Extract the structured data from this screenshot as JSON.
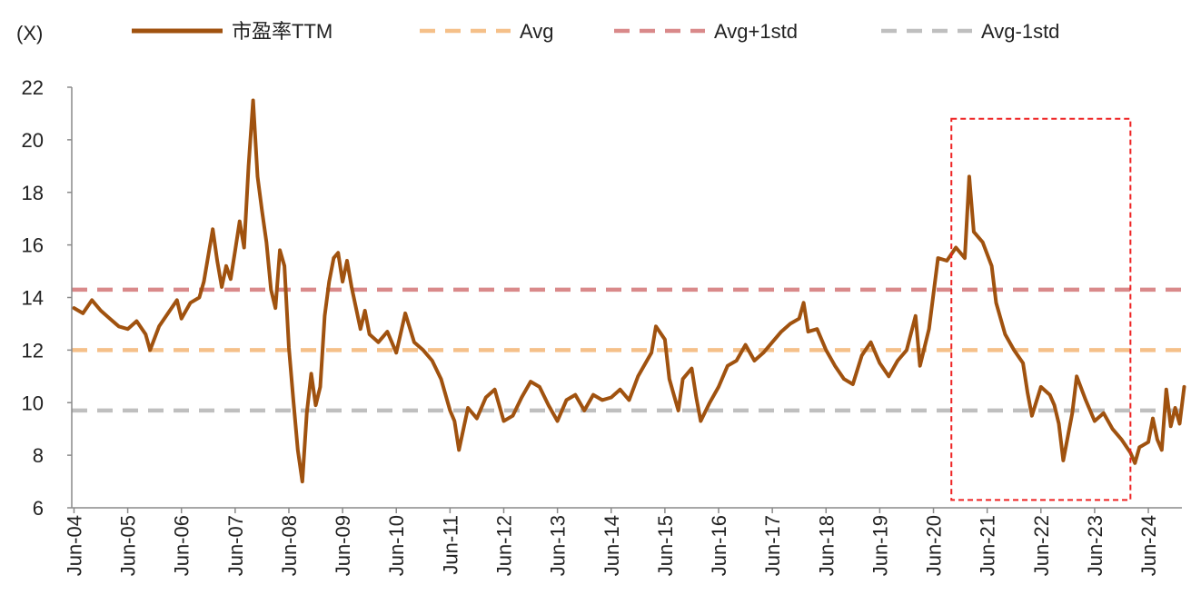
{
  "chart_data": {
    "type": "line",
    "y_unit_label": "(X)",
    "ylim": [
      6,
      22
    ],
    "y_ticks": [
      6,
      8,
      10,
      12,
      14,
      16,
      18,
      20,
      22
    ],
    "x_tick_labels": [
      "Jun-04",
      "Jun-05",
      "Jun-06",
      "Jun-07",
      "Jun-08",
      "Jun-09",
      "Jun-10",
      "Jun-11",
      "Jun-12",
      "Jun-13",
      "Jun-14",
      "Jun-15",
      "Jun-16",
      "Jun-17",
      "Jun-18",
      "Jun-19",
      "Jun-20",
      "Jun-21",
      "Jun-22",
      "Jun-23",
      "Jun-24"
    ],
    "x_range": [
      "2004-06",
      "2024-09"
    ],
    "grid": false,
    "legend_position": "top",
    "series": [
      {
        "name": "市盈率TTM",
        "color": "#A0520F",
        "style": "solid",
        "points": [
          [
            "2004-06",
            13.6
          ],
          [
            "2004-08",
            13.4
          ],
          [
            "2004-10",
            13.9
          ],
          [
            "2004-12",
            13.5
          ],
          [
            "2005-02",
            13.2
          ],
          [
            "2005-04",
            12.9
          ],
          [
            "2005-06",
            12.8
          ],
          [
            "2005-08",
            13.1
          ],
          [
            "2005-10",
            12.6
          ],
          [
            "2005-11",
            12.0
          ],
          [
            "2006-01",
            12.9
          ],
          [
            "2006-03",
            13.4
          ],
          [
            "2006-05",
            13.9
          ],
          [
            "2006-06",
            13.2
          ],
          [
            "2006-08",
            13.8
          ],
          [
            "2006-10",
            14.0
          ],
          [
            "2006-11",
            14.6
          ],
          [
            "2007-01",
            16.6
          ],
          [
            "2007-02",
            15.4
          ],
          [
            "2007-03",
            14.4
          ],
          [
            "2007-04",
            15.2
          ],
          [
            "2007-05",
            14.7
          ],
          [
            "2007-06",
            15.8
          ],
          [
            "2007-07",
            16.9
          ],
          [
            "2007-08",
            15.9
          ],
          [
            "2007-09",
            19.0
          ],
          [
            "2007-10",
            21.5
          ],
          [
            "2007-11",
            18.6
          ],
          [
            "2007-12",
            17.3
          ],
          [
            "2008-01",
            16.1
          ],
          [
            "2008-02",
            14.3
          ],
          [
            "2008-03",
            13.6
          ],
          [
            "2008-04",
            15.8
          ],
          [
            "2008-05",
            15.2
          ],
          [
            "2008-06",
            12.1
          ],
          [
            "2008-07",
            10.1
          ],
          [
            "2008-08",
            8.2
          ],
          [
            "2008-09",
            7.0
          ],
          [
            "2008-10",
            9.6
          ],
          [
            "2008-11",
            11.1
          ],
          [
            "2008-12",
            9.9
          ],
          [
            "2009-01",
            10.6
          ],
          [
            "2009-02",
            13.3
          ],
          [
            "2009-03",
            14.6
          ],
          [
            "2009-04",
            15.5
          ],
          [
            "2009-05",
            15.7
          ],
          [
            "2009-06",
            14.6
          ],
          [
            "2009-07",
            15.4
          ],
          [
            "2009-08",
            14.4
          ],
          [
            "2009-09",
            13.6
          ],
          [
            "2009-10",
            12.8
          ],
          [
            "2009-11",
            13.5
          ],
          [
            "2009-12",
            12.6
          ],
          [
            "2010-02",
            12.3
          ],
          [
            "2010-04",
            12.7
          ],
          [
            "2010-06",
            11.9
          ],
          [
            "2010-08",
            13.4
          ],
          [
            "2010-10",
            12.3
          ],
          [
            "2010-12",
            12.0
          ],
          [
            "2011-02",
            11.6
          ],
          [
            "2011-04",
            10.9
          ],
          [
            "2011-06",
            9.7
          ],
          [
            "2011-07",
            9.3
          ],
          [
            "2011-08",
            8.2
          ],
          [
            "2011-10",
            9.8
          ],
          [
            "2011-12",
            9.4
          ],
          [
            "2012-02",
            10.2
          ],
          [
            "2012-04",
            10.5
          ],
          [
            "2012-06",
            9.3
          ],
          [
            "2012-08",
            9.5
          ],
          [
            "2012-10",
            10.2
          ],
          [
            "2012-12",
            10.8
          ],
          [
            "2013-02",
            10.6
          ],
          [
            "2013-04",
            9.9
          ],
          [
            "2013-06",
            9.3
          ],
          [
            "2013-08",
            10.1
          ],
          [
            "2013-10",
            10.3
          ],
          [
            "2013-12",
            9.7
          ],
          [
            "2014-02",
            10.3
          ],
          [
            "2014-04",
            10.1
          ],
          [
            "2014-06",
            10.2
          ],
          [
            "2014-08",
            10.5
          ],
          [
            "2014-10",
            10.1
          ],
          [
            "2014-12",
            11.0
          ],
          [
            "2015-03",
            11.9
          ],
          [
            "2015-04",
            12.9
          ],
          [
            "2015-06",
            12.4
          ],
          [
            "2015-07",
            10.9
          ],
          [
            "2015-08",
            10.3
          ],
          [
            "2015-09",
            9.7
          ],
          [
            "2015-10",
            10.9
          ],
          [
            "2015-12",
            11.3
          ],
          [
            "2016-01",
            10.2
          ],
          [
            "2016-02",
            9.3
          ],
          [
            "2016-04",
            10.0
          ],
          [
            "2016-06",
            10.6
          ],
          [
            "2016-08",
            11.4
          ],
          [
            "2016-10",
            11.6
          ],
          [
            "2016-12",
            12.2
          ],
          [
            "2017-02",
            11.6
          ],
          [
            "2017-04",
            11.9
          ],
          [
            "2017-06",
            12.3
          ],
          [
            "2017-08",
            12.7
          ],
          [
            "2017-10",
            13.0
          ],
          [
            "2017-12",
            13.2
          ],
          [
            "2018-01",
            13.8
          ],
          [
            "2018-02",
            12.7
          ],
          [
            "2018-04",
            12.8
          ],
          [
            "2018-06",
            12.0
          ],
          [
            "2018-08",
            11.4
          ],
          [
            "2018-10",
            10.9
          ],
          [
            "2018-12",
            10.7
          ],
          [
            "2019-02",
            11.8
          ],
          [
            "2019-04",
            12.3
          ],
          [
            "2019-06",
            11.5
          ],
          [
            "2019-08",
            11.0
          ],
          [
            "2019-10",
            11.6
          ],
          [
            "2019-12",
            12.0
          ],
          [
            "2020-02",
            13.3
          ],
          [
            "2020-03",
            11.4
          ],
          [
            "2020-05",
            12.8
          ],
          [
            "2020-07",
            15.5
          ],
          [
            "2020-09",
            15.4
          ],
          [
            "2020-11",
            15.9
          ],
          [
            "2021-01",
            15.5
          ],
          [
            "2021-02",
            18.6
          ],
          [
            "2021-03",
            16.5
          ],
          [
            "2021-05",
            16.1
          ],
          [
            "2021-07",
            15.2
          ],
          [
            "2021-08",
            13.8
          ],
          [
            "2021-10",
            12.6
          ],
          [
            "2021-12",
            12.0
          ],
          [
            "2022-02",
            11.5
          ],
          [
            "2022-03",
            10.4
          ],
          [
            "2022-04",
            9.5
          ],
          [
            "2022-06",
            10.6
          ],
          [
            "2022-08",
            10.3
          ],
          [
            "2022-09",
            9.9
          ],
          [
            "2022-10",
            9.2
          ],
          [
            "2022-11",
            7.8
          ],
          [
            "2023-01",
            9.6
          ],
          [
            "2023-02",
            11.0
          ],
          [
            "2023-04",
            10.1
          ],
          [
            "2023-06",
            9.3
          ],
          [
            "2023-08",
            9.6
          ],
          [
            "2023-10",
            9.0
          ],
          [
            "2023-12",
            8.6
          ],
          [
            "2024-02",
            8.1
          ],
          [
            "2024-03",
            7.7
          ],
          [
            "2024-04",
            8.3
          ],
          [
            "2024-06",
            8.5
          ],
          [
            "2024-07",
            9.4
          ],
          [
            "2024-08",
            8.6
          ],
          [
            "2024-09",
            8.2
          ],
          [
            "2024-10",
            10.5
          ],
          [
            "2024-11",
            9.1
          ],
          [
            "2024-12",
            9.8
          ],
          [
            "2025-01",
            9.2
          ],
          [
            "2025-02",
            10.6
          ]
        ]
      },
      {
        "name": "Avg",
        "color": "#F5C089",
        "style": "dashed",
        "value": 12.0
      },
      {
        "name": "Avg+1std",
        "color": "#D9898A",
        "style": "dashed",
        "value": 14.3
      },
      {
        "name": "Avg-1std",
        "color": "#BFBFBF",
        "style": "dashed",
        "value": 9.7
      }
    ],
    "annotations": [
      {
        "type": "box",
        "style": "dashed",
        "color": "#EE2222",
        "x_range": [
          "2020-10",
          "2024-02"
        ],
        "y_range": [
          6.3,
          20.8
        ]
      }
    ]
  }
}
